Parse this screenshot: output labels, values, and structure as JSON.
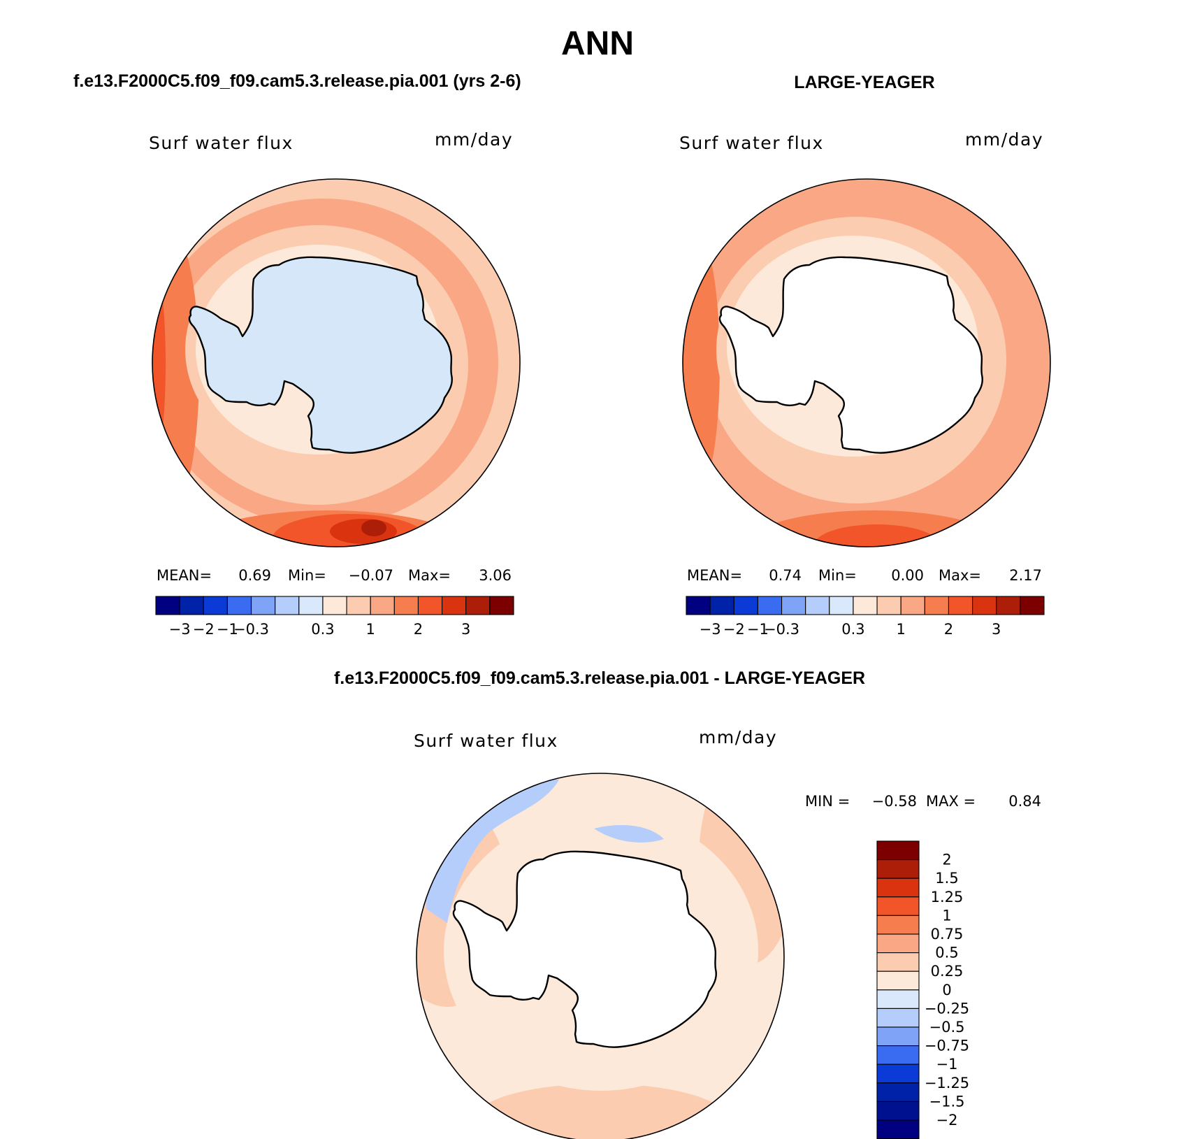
{
  "page_title": "ANN",
  "colors": {
    "neg": [
      "#000080",
      "#0022a8",
      "#0a3bd6",
      "#3a6cf2",
      "#7ea3f7",
      "#b5cdfa",
      "#d9e9fb"
    ],
    "pos": [
      "#fde9d9",
      "#fcccb0",
      "#f9a784",
      "#f57d4e",
      "#f2552a",
      "#da3310",
      "#ad1e09",
      "#7d0000"
    ],
    "coast": "#000000",
    "land_model": "#d5e7f8",
    "land_obs": "#ffffff"
  },
  "chart_data": [
    {
      "type": "heatmap",
      "projection": "south-polar-stereographic",
      "title": "f.e13.F2000C5.f09_f09.cam5.3.release.pia.001 (yrs 2-6)",
      "left_string": "Surf water flux",
      "right_string": "mm/day",
      "stats": {
        "mean_label": "MEAN=",
        "mean": "0.69",
        "min_label": "Min=",
        "min": "−0.07",
        "max_label": "Max=",
        "max": "3.06"
      },
      "levels": [
        "−3",
        "−2",
        "−1",
        "−0.3",
        "0.3",
        "1",
        "2",
        "3"
      ],
      "field": {
        "land": 0.05,
        "rings": [
          0.5,
          0.9,
          1.35,
          1.8,
          2.2
        ],
        "pool": 2.9
      }
    },
    {
      "type": "heatmap",
      "projection": "south-polar-stereographic",
      "title": "LARGE-YEAGER",
      "left_string": "Surf water flux",
      "right_string": "mm/day",
      "stats": {
        "mean_label": "MEAN=",
        "mean": "0.74",
        "min_label": "Min=",
        "min": "0.00",
        "max_label": "Max=",
        "max": "2.17"
      },
      "levels": [
        "−3",
        "−2",
        "−1",
        "−0.3",
        "0.3",
        "1",
        "2",
        "3"
      ],
      "field": {
        "land": null,
        "rings": [
          0.2,
          0.6,
          1.1,
          1.6,
          1.9
        ],
        "pool": 2.1
      }
    },
    {
      "type": "heatmap",
      "projection": "south-polar-stereographic",
      "title": "f.e13.F2000C5.f09_f09.cam5.3.release.pia.001 - LARGE-YEAGER",
      "left_string": "Surf water flux",
      "right_string": "mm/day",
      "stats": {
        "min_label": "MIN =",
        "min": "−0.58",
        "max_label": "MAX =",
        "max": "0.84"
      },
      "levels": [
        "2",
        "1.5",
        "1.25",
        "1",
        "0.75",
        "0.5",
        "0.25",
        "0",
        "−0.25",
        "−0.5",
        "−0.75",
        "−1",
        "−1.25",
        "−1.5",
        "−2"
      ],
      "field": {
        "land": null,
        "rings": [
          0.1,
          0.15,
          0.3
        ],
        "pool": 0.3,
        "negative_patch": -0.3
      }
    }
  ]
}
